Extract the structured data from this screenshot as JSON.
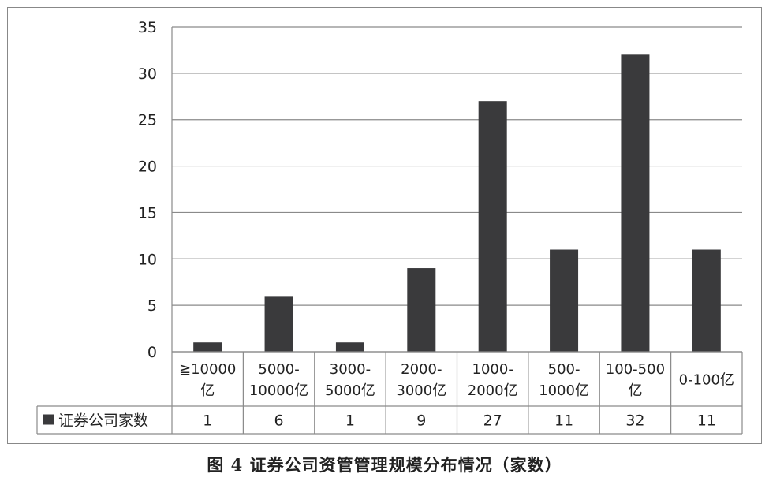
{
  "chart_data": {
    "type": "bar",
    "categories": [
      [
        "≧10000",
        "亿"
      ],
      [
        "5000-",
        "10000亿"
      ],
      [
        "3000-",
        "5000亿"
      ],
      [
        "2000-",
        "3000亿"
      ],
      [
        "1000-",
        "2000亿"
      ],
      [
        "500-",
        "1000亿"
      ],
      [
        "100-500",
        "亿"
      ],
      [
        "0-100亿"
      ]
    ],
    "series": [
      {
        "name": "证券公司家数",
        "values": [
          1,
          6,
          1,
          9,
          27,
          11,
          32,
          11
        ]
      }
    ],
    "ylim": [
      0,
      35
    ],
    "yticks": [
      0,
      5,
      10,
      15,
      20,
      25,
      30,
      35
    ],
    "grid": true,
    "data_table": true,
    "bar_color": "#3a3a3c",
    "title": "图 4  证券公司资管管理规模分布情况（家数）"
  }
}
